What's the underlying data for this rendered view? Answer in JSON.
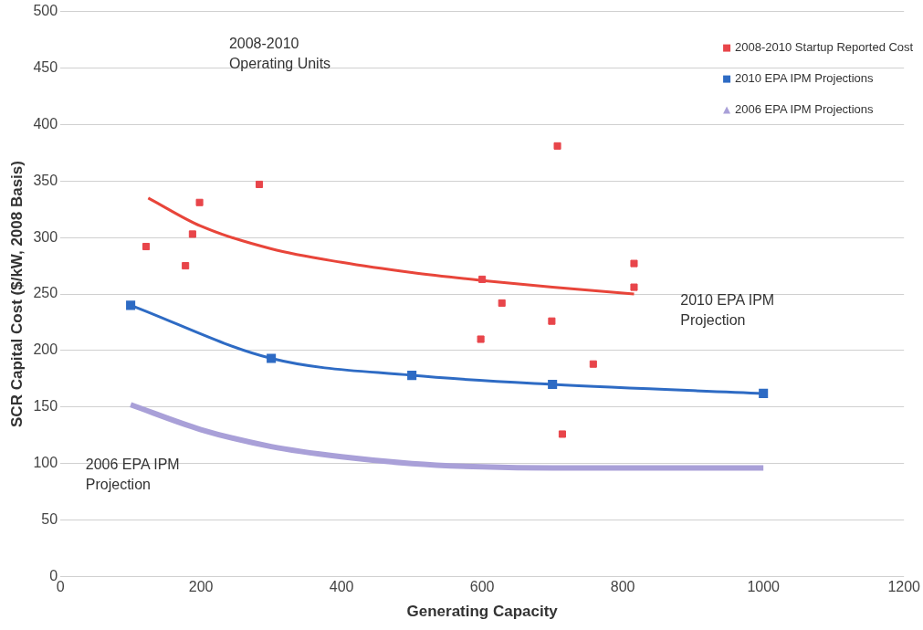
{
  "chart_data": {
    "type": "scatter",
    "xlabel": "Generating Capacity",
    "ylabel": "SCR Capital Cost ($/kW, 2008 Basis)",
    "xlim": [
      0,
      1200
    ],
    "xticks": [
      0,
      200,
      400,
      600,
      800,
      1000,
      1200
    ],
    "ylim": [
      0,
      500
    ],
    "yticks": [
      0,
      50,
      100,
      150,
      200,
      250,
      300,
      350,
      400,
      450,
      500
    ],
    "grid": "y",
    "legend": "top right",
    "series": [
      {
        "name": "2008-2010 Startup Reported Cost",
        "type": "scatter",
        "marker": "square",
        "color": "#e8454a",
        "x": [
          122,
          178,
          188,
          198,
          283,
          600,
          628,
          598,
          707,
          699,
          758,
          714,
          816,
          816
        ],
        "values": [
          292,
          275,
          303,
          331,
          347,
          263,
          242,
          210,
          381,
          226,
          188,
          126,
          277,
          256
        ]
      },
      {
        "type": "line",
        "marker": "none",
        "color": "#e8453a",
        "x": [
          125,
          200,
          300,
          400,
          500,
          600,
          700,
          816
        ],
        "values": [
          335,
          310,
          290,
          278,
          269,
          262,
          256,
          250
        ]
      },
      {
        "name": "2010 EPA IPM Projections",
        "type": "line",
        "marker": "square",
        "color": "#2e6bc4",
        "x": [
          100,
          300,
          500,
          700,
          1000
        ],
        "values": [
          240,
          193,
          178,
          170,
          162
        ]
      },
      {
        "name": "2006 EPA IPM Projections",
        "type": "line",
        "marker": "none",
        "color": "#a9a0d8",
        "x": [
          100,
          200,
          300,
          400,
          500,
          600,
          700,
          800,
          1000
        ],
        "values": [
          152,
          130,
          115,
          106,
          100,
          97,
          96,
          96,
          96
        ]
      }
    ],
    "annotations": [
      "2008-2010\nOperating Units",
      "2010 EPA IPM\nProjection",
      "2006 EPA IPM\nProjection"
    ]
  }
}
